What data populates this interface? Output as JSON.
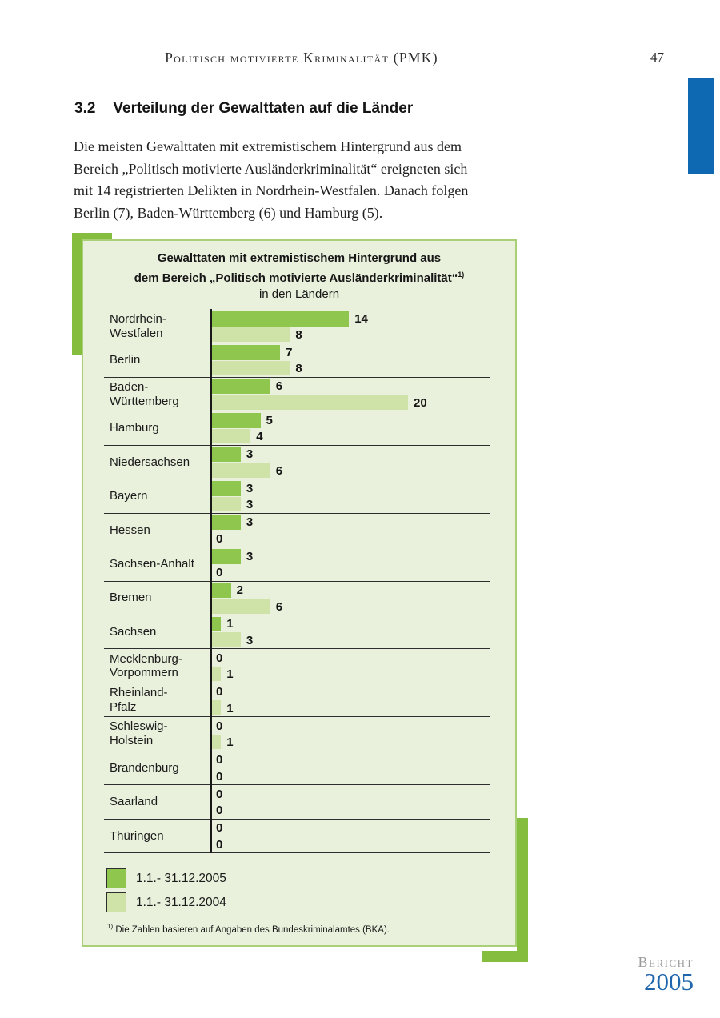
{
  "page": {
    "header": {
      "title": "Politisch motivierte Kriminalität (PMK)",
      "page_number": "47"
    },
    "section": {
      "number": "3.2",
      "title": "Verteilung der Gewalttaten auf die Länder"
    },
    "paragraph": "Die meisten Gewalttaten mit extremistischem Hintergrund aus dem\nBereich „Politisch motivierte Ausländerkriminalität“ ereigneten sich\nmit 14 registrierten Delikten in Nordrhein-Westfalen. Danach folgen\nBerlin (7), Baden-Württemberg (6) und Hamburg (5).",
    "footer_logo": {
      "line1": "Bericht",
      "line2": "2005"
    }
  },
  "chart_data": {
    "type": "bar",
    "orientation": "horizontal",
    "title_line1": "Gewalttaten mit extremistischem Hintergrund aus",
    "title_line2": "dem Bereich „Politisch motivierte Ausländerkriminalität“",
    "title_footnote_marker": "1)",
    "title_line3": "in den Ländern",
    "categories": [
      "Nordrhein-\nWestfalen",
      "Berlin",
      "Baden-\nWürttemberg",
      "Hamburg",
      "Niedersachsen",
      "Bayern",
      "Hessen",
      "Sachsen-Anhalt",
      "Bremen",
      "Sachsen",
      "Mecklenburg-\nVorpommern",
      "Rheinland-\nPfalz",
      "Schleswig-\nHolstein",
      "Brandenburg",
      "Saarland",
      "Thüringen"
    ],
    "series": [
      {
        "name": "1.1.- 31.12.2005",
        "color": "#8ec64e",
        "values": [
          14,
          7,
          6,
          5,
          3,
          3,
          3,
          3,
          2,
          1,
          0,
          0,
          0,
          0,
          0,
          0
        ]
      },
      {
        "name": "1.1.- 31.12.2004",
        "color": "#cfe3a9",
        "values": [
          8,
          8,
          20,
          4,
          6,
          3,
          0,
          0,
          6,
          3,
          1,
          1,
          1,
          0,
          0,
          0
        ]
      }
    ],
    "xlim": [
      0,
      28
    ],
    "legend_position": "bottom-left",
    "grid": "row-separator-lines",
    "footnote_marker": "1)",
    "footnote": "Die Zahlen basieren auf Angaben des Bundeskriminalamtes (BKA)."
  },
  "colors": {
    "accent_green": "#85bd3f",
    "box_background": "#e9f1dc",
    "box_border": "#a9d077",
    "bar_2005": "#8ec64e",
    "bar_2004": "#cfe3a9",
    "chapter_marker_blue": "#0e69b2",
    "logo_year_blue": "#1e65ab",
    "logo_bericht_gray": "#9b9b9b"
  }
}
